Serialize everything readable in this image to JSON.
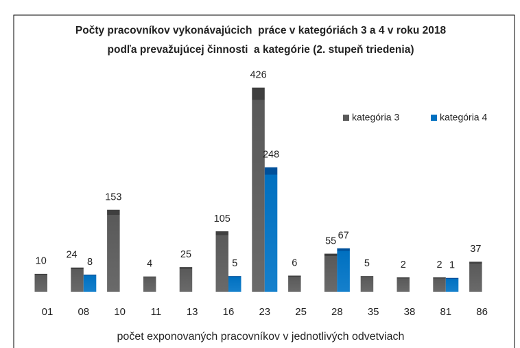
{
  "chart_data": {
    "type": "bar",
    "title": [
      "Počty pracovníkov vykonávajúcich  práce v kategóriách 3 a 4 v roku 2018",
      "podľa prevažujúcej činnosti  a kategórie (2. stupeň triedenia)"
    ],
    "x_label": "počet exponovaných pracovníkov v jednotlivých odvetviach",
    "categories": [
      "01",
      "08",
      "10",
      "11",
      "13",
      "16",
      "23",
      "25",
      "28",
      "35",
      "38",
      "81",
      "86"
    ],
    "series": [
      {
        "name": "kategória 3",
        "color": "#595959",
        "values": [
          10,
          24,
          153,
          4,
          25,
          105,
          426,
          6,
          55,
          5,
          2,
          2,
          37
        ]
      },
      {
        "name": "kategória 4",
        "color": "#0070c0",
        "values": [
          null,
          8,
          null,
          null,
          null,
          5,
          248,
          null,
          67,
          null,
          null,
          1,
          null
        ]
      }
    ],
    "ylim": [
      -30,
      450
    ],
    "grid": false,
    "legend": "top-right"
  }
}
